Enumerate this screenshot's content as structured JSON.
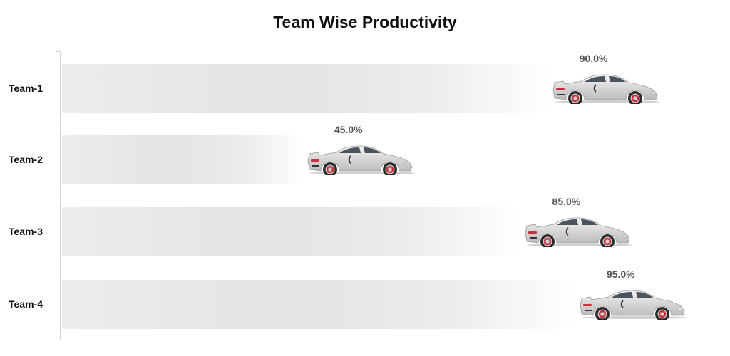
{
  "chart_data": {
    "type": "bar",
    "orientation": "horizontal",
    "title": "Team Wise Productivity",
    "categories": [
      "Team-1",
      "Team-2",
      "Team-3",
      "Team-4"
    ],
    "values": [
      90.0,
      45.0,
      85.0,
      95.0
    ],
    "value_labels": [
      "90.0%",
      "45.0%",
      "85.0%",
      "95.0%"
    ],
    "xlabel": "",
    "ylabel": "",
    "xlim": [
      0,
      100
    ],
    "grid": false,
    "legend": "none",
    "marker": "car-icon",
    "bar_color": "#e4e4e4"
  },
  "title": "Team Wise Productivity",
  "rows": [
    {
      "label": "Team-1",
      "value_label": "90.0%"
    },
    {
      "label": "Team-2",
      "value_label": "45.0%"
    },
    {
      "label": "Team-3",
      "value_label": "85.0%"
    },
    {
      "label": "Team-4",
      "value_label": "95.0%"
    }
  ],
  "colors": {
    "bar": "#e4e4e4",
    "car_body": "#d9d9d9",
    "car_window": "#4a5360",
    "brake": "#c8303a",
    "label_text": "#555555"
  }
}
